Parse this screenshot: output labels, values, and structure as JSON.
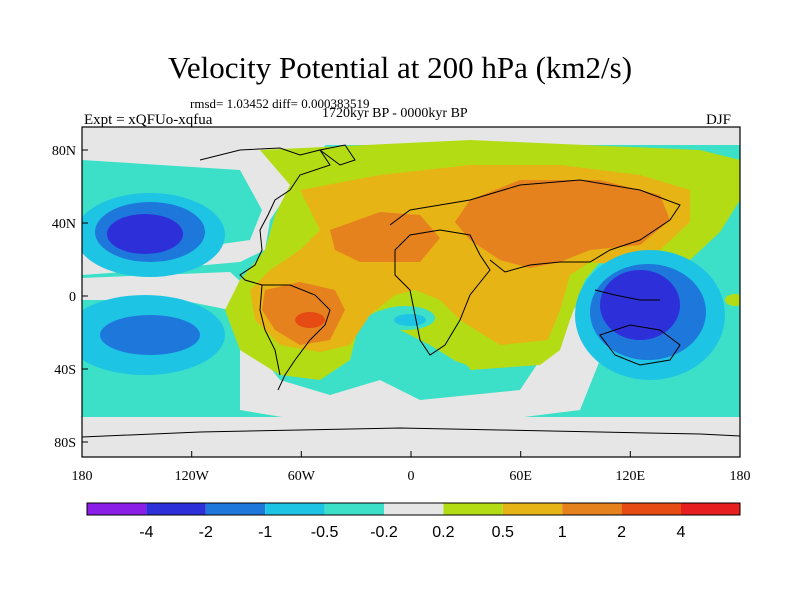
{
  "title": "Velocity Potential at 200 hPa (km2/s)",
  "stats": "rmsd= 1.03452 diff= 0.000383519",
  "period": "1720kyr BP - 0000kyr BP",
  "experiment": "Expt = xQFUo-xqfua",
  "season": "DJF",
  "map": {
    "lon_ticks": [
      "180",
      "120W",
      "60W",
      "0",
      "60E",
      "120E",
      "180"
    ],
    "lat_ticks": [
      "80N",
      "40N",
      "0",
      "40S",
      "80S"
    ]
  },
  "colorbar": {
    "labels": [
      "-4",
      "-2",
      "-1",
      "-0.5",
      "-0.2",
      "0.2",
      "0.5",
      "1",
      "2",
      "4"
    ],
    "colors": [
      "#8a1ee6",
      "#2d2fd8",
      "#1e78dc",
      "#1ec4e4",
      "#3ce0c8",
      "#e6e6e6",
      "#b4dc14",
      "#e6b414",
      "#e6821e",
      "#e64b14",
      "#e61e1e"
    ]
  }
}
